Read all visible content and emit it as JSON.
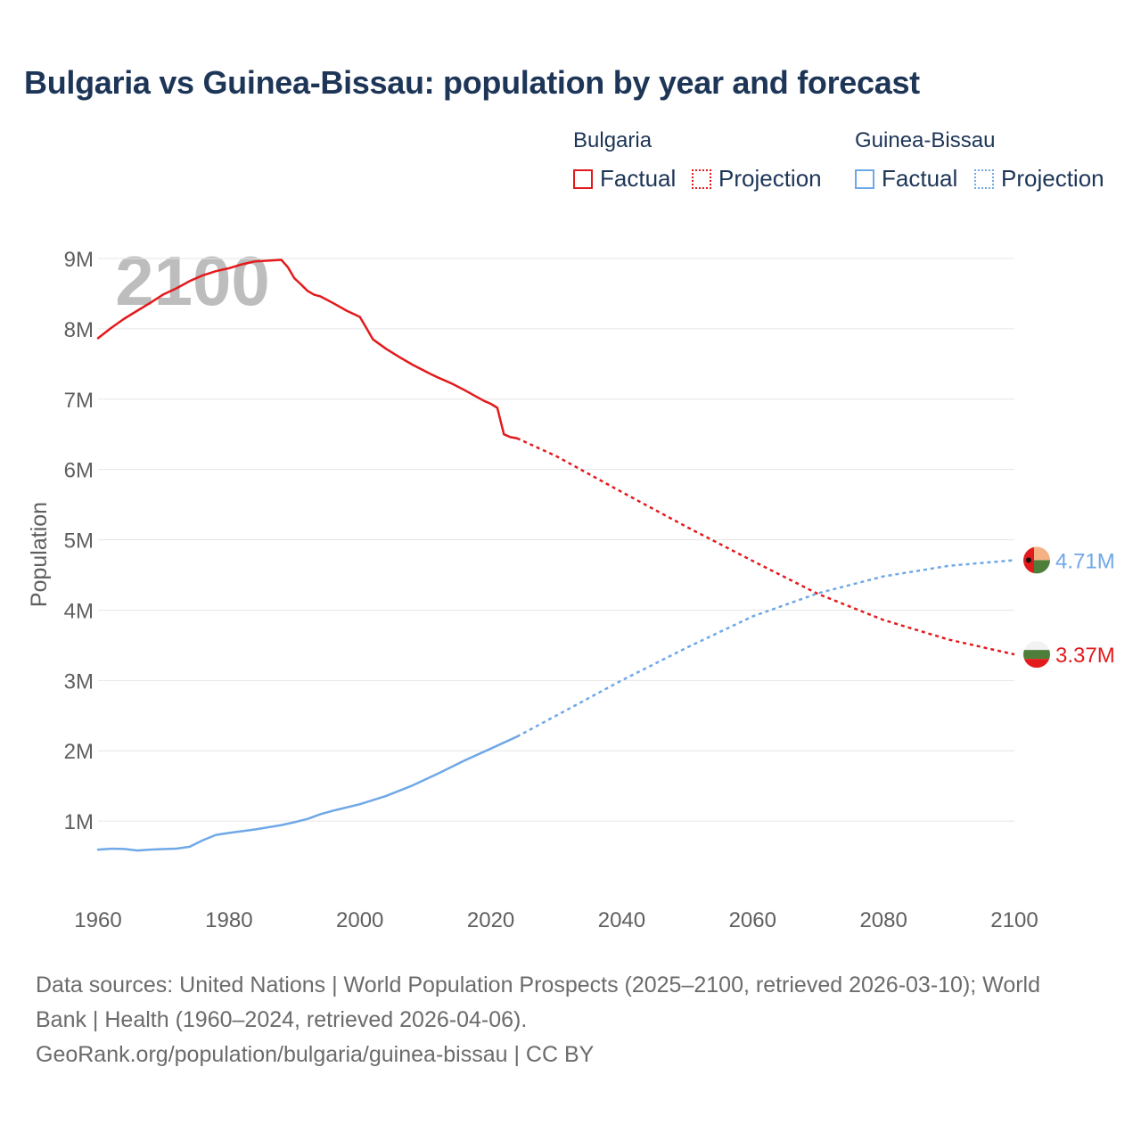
{
  "chart_data": {
    "type": "line",
    "title": "Bulgaria vs Guinea-Bissau: population by year and forecast",
    "xlabel": "",
    "ylabel": "Population",
    "xlim": [
      1960,
      2100
    ],
    "ylim": [
      0,
      9000000
    ],
    "x_ticks": [
      1960,
      1980,
      2000,
      2020,
      2040,
      2060,
      2080,
      2100
    ],
    "x_tick_labels": [
      "1960",
      "1980",
      "2000",
      "2020",
      "2040",
      "2060",
      "2080",
      "2100"
    ],
    "y_ticks": [
      1000000,
      2000000,
      3000000,
      4000000,
      5000000,
      6000000,
      7000000,
      8000000,
      9000000
    ],
    "y_tick_labels": [
      "1M",
      "2M",
      "3M",
      "4M",
      "5M",
      "6M",
      "7M",
      "8M",
      "9M"
    ],
    "year_watermark": "2100",
    "legend": {
      "groups": [
        {
          "name": "Bulgaria",
          "color": "#e31a1c",
          "factual_label": "Factual",
          "projection_label": "Projection"
        },
        {
          "name": "Guinea-Bissau",
          "color": "#6fa8e6",
          "factual_label": "Factual",
          "projection_label": "Projection"
        }
      ]
    },
    "series": [
      {
        "name": "Bulgaria",
        "color": "#e31a1c",
        "end_label": "3.37M",
        "factual": {
          "x": [
            1960,
            1962,
            1964,
            1966,
            1968,
            1970,
            1972,
            1974,
            1976,
            1978,
            1980,
            1982,
            1984,
            1986,
            1988,
            1989,
            1990,
            1991,
            1992,
            1993,
            1994,
            1996,
            1998,
            2000,
            2001,
            2002,
            2004,
            2006,
            2008,
            2010,
            2011,
            2012,
            2014,
            2016,
            2018,
            2019,
            2020,
            2021,
            2022,
            2023,
            2024
          ],
          "y": [
            7867000,
            8012000,
            8144000,
            8258000,
            8370000,
            8490000,
            8576000,
            8679000,
            8761000,
            8820000,
            8862000,
            8917000,
            8960000,
            8969000,
            8981000,
            8877000,
            8718000,
            8632000,
            8540000,
            8485000,
            8460000,
            8363000,
            8257000,
            8170000,
            8010000,
            7850000,
            7716000,
            7601000,
            7492000,
            7396000,
            7348000,
            7305000,
            7224000,
            7128000,
            7025000,
            6975000,
            6934000,
            6877000,
            6500000,
            6460000,
            6445000
          ]
        },
        "projection": {
          "x": [
            2024,
            2030,
            2040,
            2050,
            2060,
            2070,
            2080,
            2090,
            2100
          ],
          "y": [
            6445000,
            6190000,
            5680000,
            5180000,
            4700000,
            4230000,
            3860000,
            3580000,
            3370000
          ]
        }
      },
      {
        "name": "Guinea-Bissau",
        "color": "#6fa8e6",
        "end_label": "4.71M",
        "factual": {
          "x": [
            1960,
            1962,
            1964,
            1966,
            1968,
            1970,
            1972,
            1974,
            1976,
            1978,
            1980,
            1984,
            1988,
            1990,
            1992,
            1994,
            1996,
            2000,
            2004,
            2008,
            2012,
            2016,
            2020,
            2024
          ],
          "y": [
            594000,
            607000,
            603000,
            582000,
            595000,
            602000,
            609000,
            635000,
            728000,
            804000,
            831000,
            881000,
            943000,
            984000,
            1030000,
            1099000,
            1150000,
            1240000,
            1357000,
            1505000,
            1678000,
            1862000,
            2031000,
            2201000
          ]
        },
        "projection": {
          "x": [
            2024,
            2030,
            2040,
            2050,
            2060,
            2070,
            2080,
            2090,
            2100
          ],
          "y": [
            2201000,
            2500000,
            3000000,
            3470000,
            3910000,
            4240000,
            4480000,
            4630000,
            4710000
          ]
        }
      }
    ]
  },
  "footer": {
    "line1": "Data sources: United Nations | World Population Prospects (2025–2100, retrieved 2026-03-10); World",
    "line2": "Bank | Health (1960–2024, retrieved 2026-04-06).",
    "line3": "GeoRank.org/population/bulgaria/guinea-bissau | CC BY"
  },
  "colors": {
    "title": "#1d3557",
    "grid": "#e6e6e6",
    "axis_text": "#5f5f5f",
    "watermark": "#bdbdbd"
  }
}
